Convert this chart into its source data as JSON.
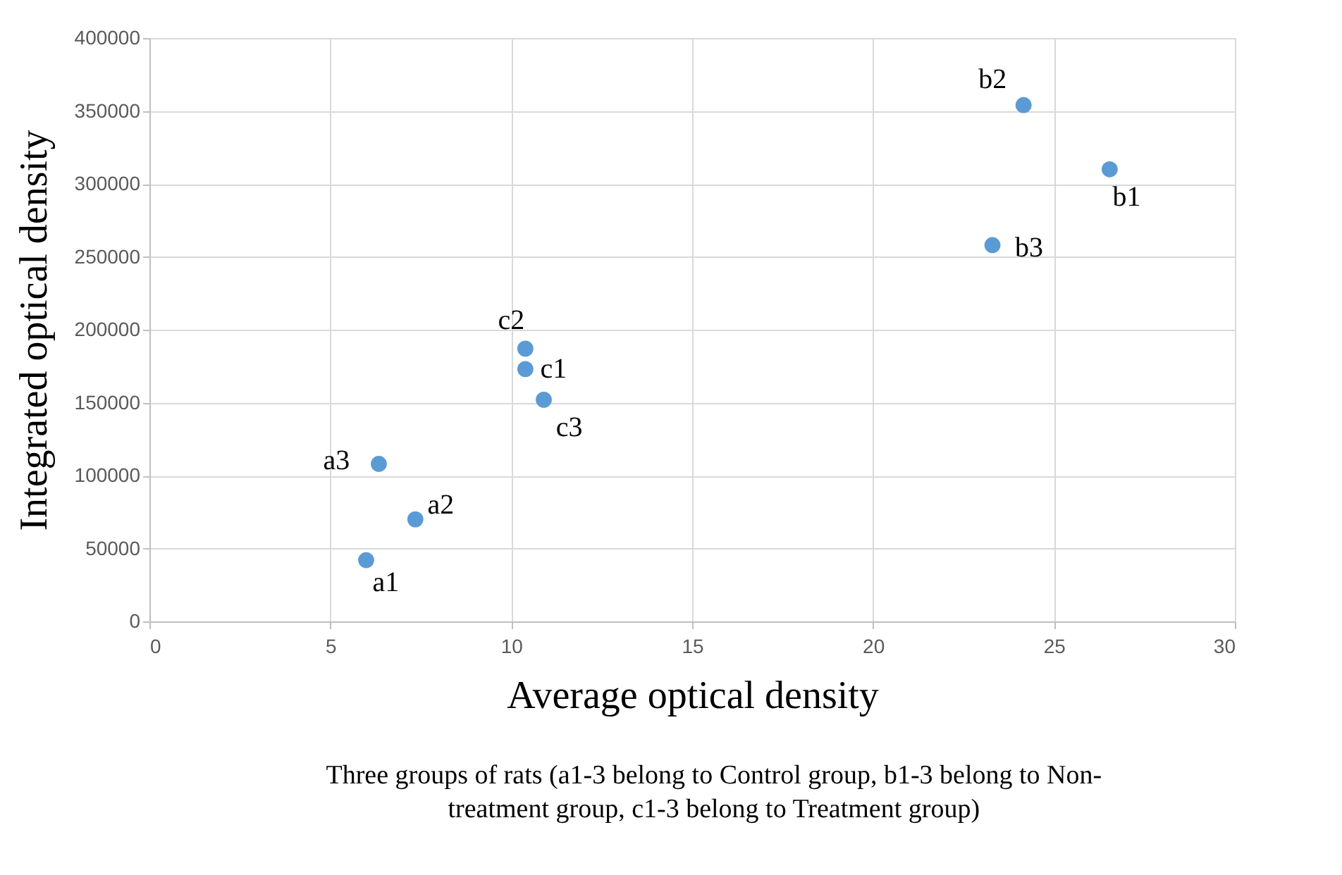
{
  "chart_data": {
    "type": "scatter",
    "xlabel": "Average optical density",
    "ylabel": "Integrated optical density",
    "x": [
      5.99,
      7.35,
      6.34,
      26.54,
      24.16,
      23.3,
      10.39,
      10.39,
      10.9
    ],
    "values": [
      42000,
      70000,
      108000,
      310000,
      354000,
      258000,
      173000,
      187000,
      152000
    ],
    "color": "#5b9bd5",
    "marker": "circle",
    "xlim": [
      0,
      30
    ],
    "xticks": [
      0,
      5,
      10,
      15,
      20,
      25,
      30
    ],
    "ylim": [
      0,
      400000
    ],
    "yticks": [
      0,
      50000,
      100000,
      150000,
      200000,
      250000,
      300000,
      350000,
      400000
    ],
    "grid": true,
    "annotations": [
      {
        "text": "a1",
        "x": 5.99,
        "y": 42000
      },
      {
        "text": "a2",
        "x": 7.35,
        "y": 70000
      },
      {
        "text": "a3",
        "x": 6.34,
        "y": 108000
      },
      {
        "text": "b1",
        "x": 26.54,
        "y": 310000
      },
      {
        "text": "b2",
        "x": 24.16,
        "y": 354000
      },
      {
        "text": "b3",
        "x": 23.3,
        "y": 258000
      },
      {
        "text": "c1",
        "x": 10.39,
        "y": 173000
      },
      {
        "text": "c2",
        "x": 10.39,
        "y": 187000
      },
      {
        "text": "c3",
        "x": 10.9,
        "y": 152000
      },
      "Three groups of rats (a1-3 belong to Control group, b1-3 belong to Non-treatment group, c1-3 belong to Treatment group)"
    ]
  }
}
